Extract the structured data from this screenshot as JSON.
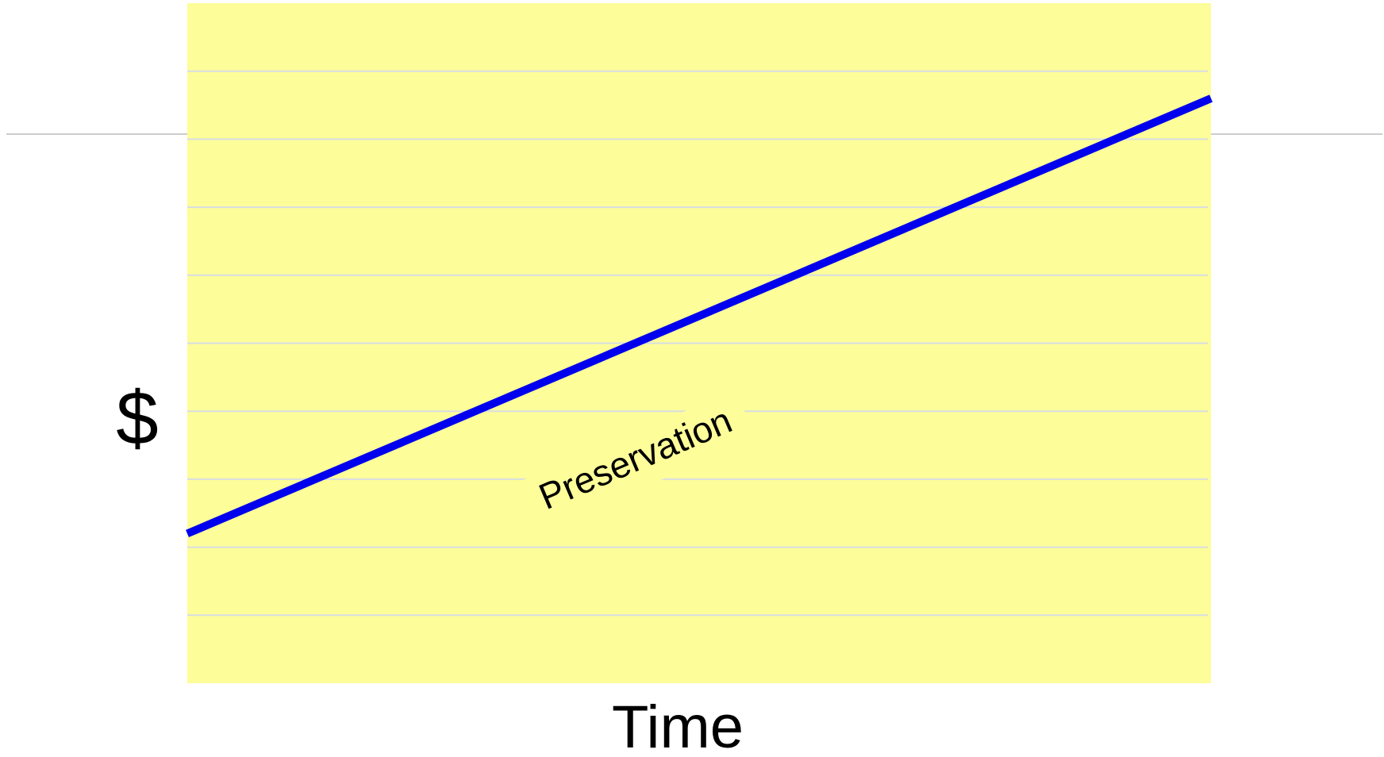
{
  "chart_data": {
    "type": "line",
    "x_label": "Time",
    "y_label": "$",
    "annotation": "Preservation",
    "x": [
      0,
      1
    ],
    "series": [
      {
        "color": "#0000ee",
        "values": [
          2.2,
          8.6
        ]
      }
    ],
    "xlim": [
      0,
      1
    ],
    "ylim": [
      0,
      10
    ],
    "yticks": [
      1,
      2,
      3,
      4,
      5,
      6,
      7,
      8,
      9
    ],
    "grid": true,
    "background": "#fdfd9a",
    "grid_color": "#d8dde2"
  }
}
